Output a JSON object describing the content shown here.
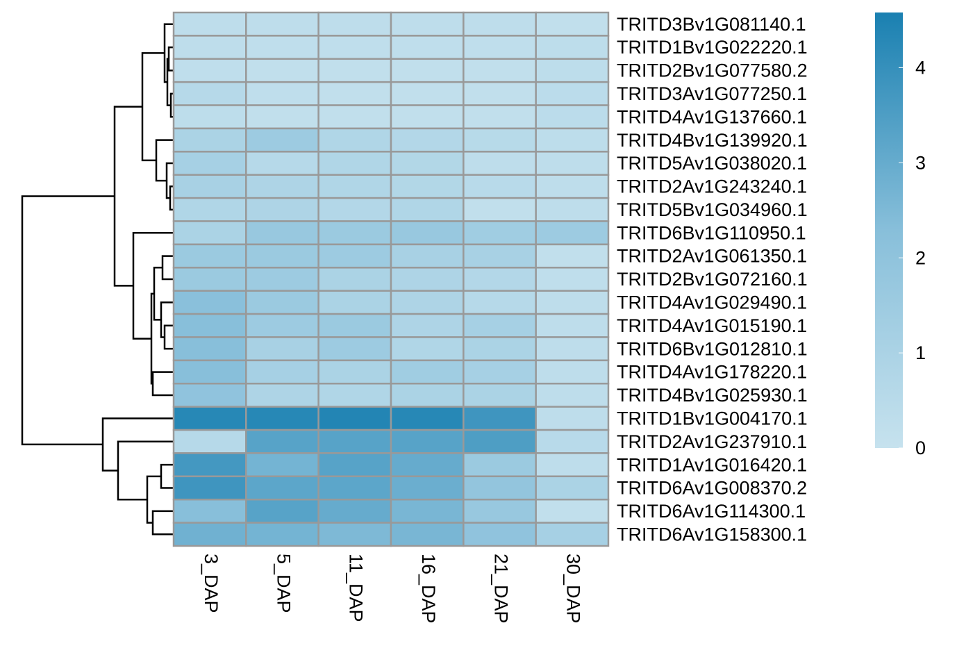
{
  "chart_data": {
    "type": "heatmap",
    "rows": [
      "TRITD3Bv1G081140.1",
      "TRITD1Bv1G022220.1",
      "TRITD2Bv1G077580.2",
      "TRITD3Av1G077250.1",
      "TRITD4Av1G137660.1",
      "TRITD4Bv1G139920.1",
      "TRITD5Av1G038020.1",
      "TRITD2Av1G243240.1",
      "TRITD5Bv1G034960.1",
      "TRITD6Bv1G110950.1",
      "TRITD2Av1G061350.1",
      "TRITD2Bv1G072160.1",
      "TRITD4Av1G029490.1",
      "TRITD4Av1G015190.1",
      "TRITD6Bv1G012810.1",
      "TRITD4Av1G178220.1",
      "TRITD4Bv1G025930.1",
      "TRITD1Bv1G004170.1",
      "TRITD2Av1G237910.1",
      "TRITD1Av1G016420.1",
      "TRITD6Av1G008370.2",
      "TRITD6Av1G114300.1",
      "TRITD6Av1G158300.1"
    ],
    "columns": [
      "3_DAP",
      "5_DAP",
      "11_DAP",
      "16_DAP",
      "21_DAP",
      "30_DAP"
    ],
    "values": [
      [
        0.3,
        0.3,
        0.3,
        0.3,
        0.3,
        0.2
      ],
      [
        0.3,
        0.25,
        0.25,
        0.25,
        0.25,
        0.35
      ],
      [
        0.25,
        0.2,
        0.2,
        0.2,
        0.2,
        0.35
      ],
      [
        0.6,
        0.25,
        0.2,
        0.2,
        0.2,
        0.4
      ],
      [
        0.35,
        0.2,
        0.2,
        0.2,
        0.2,
        0.4
      ],
      [
        1.0,
        1.5,
        0.8,
        0.7,
        0.55,
        0.35
      ],
      [
        1.2,
        0.6,
        0.8,
        0.75,
        0.3,
        0.3
      ],
      [
        1.1,
        0.9,
        0.8,
        0.75,
        0.5,
        0.3
      ],
      [
        0.8,
        0.9,
        0.7,
        0.8,
        0.2,
        0.3
      ],
      [
        1.0,
        1.7,
        1.6,
        1.7,
        1.4,
        1.5
      ],
      [
        1.6,
        1.6,
        1.5,
        1.1,
        1.1,
        0.2
      ],
      [
        1.6,
        1.5,
        1.0,
        0.9,
        0.7,
        0.25
      ],
      [
        2.2,
        1.6,
        1.0,
        0.9,
        0.6,
        0.3
      ],
      [
        2.3,
        1.5,
        1.6,
        0.9,
        1.2,
        0.3
      ],
      [
        2.3,
        1.1,
        1.5,
        0.8,
        1.0,
        0.3
      ],
      [
        2.3,
        1.2,
        1.0,
        1.4,
        1.2,
        0.3
      ],
      [
        2.0,
        0.9,
        0.8,
        1.0,
        1.0,
        0.3
      ],
      [
        4.3,
        4.3,
        4.4,
        4.3,
        3.8,
        0.3
      ],
      [
        0.6,
        3.3,
        3.3,
        3.3,
        3.5,
        0.5
      ],
      [
        3.7,
        2.7,
        3.3,
        3.0,
        1.6,
        0.3
      ],
      [
        3.8,
        3.2,
        3.2,
        2.9,
        1.9,
        1.0
      ],
      [
        2.3,
        3.3,
        3.0,
        2.6,
        1.7,
        0.2
      ],
      [
        2.8,
        2.7,
        2.5,
        2.6,
        2.0,
        1.2
      ]
    ],
    "zlim": [
      0,
      4.58
    ],
    "zticks": [
      0,
      1,
      2,
      3,
      4
    ],
    "colors": [
      "#c6e2ee",
      "#88bfda",
      "#1a80b1"
    ]
  }
}
